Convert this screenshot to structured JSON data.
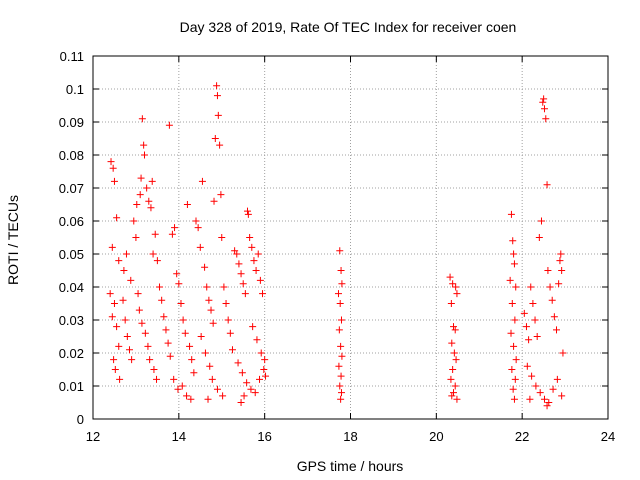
{
  "chart_data": {
    "type": "scatter",
    "title": "Day 328 of 2019, Rate Of TEC Index for receiver coen",
    "xlabel": "GPS time / hours",
    "ylabel": "ROTI / TECUs",
    "xlim": [
      12,
      24
    ],
    "ylim": [
      0,
      0.11
    ],
    "xticks": [
      12,
      14,
      16,
      18,
      20,
      22,
      24
    ],
    "yticks": [
      0,
      0.01,
      0.02,
      0.03,
      0.04,
      0.05,
      0.06,
      0.07,
      0.08,
      0.09,
      0.1,
      0.11
    ],
    "grid": true,
    "marker": "+",
    "marker_color": "#ff0000",
    "series": [
      {
        "name": "ROTI",
        "points": [
          [
            12.42,
            0.078
          ],
          [
            12.47,
            0.076
          ],
          [
            12.5,
            0.072
          ],
          [
            12.55,
            0.061
          ],
          [
            12.45,
            0.052
          ],
          [
            12.6,
            0.048
          ],
          [
            12.4,
            0.038
          ],
          [
            12.5,
            0.035
          ],
          [
            12.45,
            0.031
          ],
          [
            12.55,
            0.028
          ],
          [
            12.6,
            0.022
          ],
          [
            12.48,
            0.018
          ],
          [
            12.52,
            0.015
          ],
          [
            12.62,
            0.012
          ],
          [
            12.7,
            0.036
          ],
          [
            12.75,
            0.03
          ],
          [
            12.8,
            0.025
          ],
          [
            12.85,
            0.021
          ],
          [
            12.9,
            0.018
          ],
          [
            12.72,
            0.045
          ],
          [
            12.78,
            0.05
          ],
          [
            12.88,
            0.042
          ],
          [
            12.95,
            0.06
          ],
          [
            13.0,
            0.055
          ],
          [
            13.02,
            0.065
          ],
          [
            13.1,
            0.068
          ],
          [
            13.12,
            0.073
          ],
          [
            13.15,
            0.091
          ],
          [
            13.18,
            0.083
          ],
          [
            13.2,
            0.08
          ],
          [
            13.25,
            0.07
          ],
          [
            13.3,
            0.066
          ],
          [
            13.35,
            0.064
          ],
          [
            13.38,
            0.072
          ],
          [
            13.4,
            0.05
          ],
          [
            13.45,
            0.056
          ],
          [
            13.5,
            0.048
          ],
          [
            13.05,
            0.038
          ],
          [
            13.08,
            0.033
          ],
          [
            13.14,
            0.029
          ],
          [
            13.22,
            0.026
          ],
          [
            13.28,
            0.022
          ],
          [
            13.32,
            0.018
          ],
          [
            13.42,
            0.015
          ],
          [
            13.48,
            0.012
          ],
          [
            13.55,
            0.04
          ],
          [
            13.6,
            0.036
          ],
          [
            13.65,
            0.031
          ],
          [
            13.7,
            0.027
          ],
          [
            13.75,
            0.023
          ],
          [
            13.78,
            0.089
          ],
          [
            13.8,
            0.019
          ],
          [
            13.85,
            0.056
          ],
          [
            13.9,
            0.058
          ],
          [
            13.95,
            0.044
          ],
          [
            14.0,
            0.041
          ],
          [
            14.05,
            0.035
          ],
          [
            14.1,
            0.03
          ],
          [
            14.15,
            0.026
          ],
          [
            14.2,
            0.065
          ],
          [
            14.25,
            0.022
          ],
          [
            14.3,
            0.018
          ],
          [
            14.35,
            0.014
          ],
          [
            13.88,
            0.012
          ],
          [
            13.98,
            0.009
          ],
          [
            14.08,
            0.01
          ],
          [
            14.18,
            0.007
          ],
          [
            14.28,
            0.006
          ],
          [
            14.4,
            0.06
          ],
          [
            14.45,
            0.058
          ],
          [
            14.5,
            0.052
          ],
          [
            14.55,
            0.072
          ],
          [
            14.6,
            0.046
          ],
          [
            14.65,
            0.04
          ],
          [
            14.7,
            0.036
          ],
          [
            14.75,
            0.033
          ],
          [
            14.8,
            0.029
          ],
          [
            14.85,
            0.085
          ],
          [
            14.88,
            0.101
          ],
          [
            14.9,
            0.098
          ],
          [
            14.92,
            0.092
          ],
          [
            14.95,
            0.083
          ],
          [
            14.98,
            0.068
          ],
          [
            14.82,
            0.066
          ],
          [
            15.0,
            0.055
          ],
          [
            14.52,
            0.025
          ],
          [
            14.62,
            0.02
          ],
          [
            14.72,
            0.016
          ],
          [
            14.78,
            0.012
          ],
          [
            14.9,
            0.009
          ],
          [
            15.02,
            0.007
          ],
          [
            14.68,
            0.006
          ],
          [
            15.05,
            0.04
          ],
          [
            15.1,
            0.035
          ],
          [
            15.15,
            0.03
          ],
          [
            15.2,
            0.026
          ],
          [
            15.25,
            0.021
          ],
          [
            15.3,
            0.051
          ],
          [
            15.35,
            0.05
          ],
          [
            15.4,
            0.047
          ],
          [
            15.45,
            0.044
          ],
          [
            15.5,
            0.041
          ],
          [
            15.55,
            0.038
          ],
          [
            15.6,
            0.063
          ],
          [
            15.62,
            0.062
          ],
          [
            15.65,
            0.055
          ],
          [
            15.7,
            0.052
          ],
          [
            15.75,
            0.048
          ],
          [
            15.8,
            0.045
          ],
          [
            15.85,
            0.05
          ],
          [
            15.9,
            0.042
          ],
          [
            15.95,
            0.038
          ],
          [
            15.38,
            0.017
          ],
          [
            15.48,
            0.014
          ],
          [
            15.58,
            0.011
          ],
          [
            15.68,
            0.009
          ],
          [
            15.78,
            0.008
          ],
          [
            15.88,
            0.012
          ],
          [
            15.98,
            0.015
          ],
          [
            15.45,
            0.005
          ],
          [
            15.52,
            0.007
          ],
          [
            15.72,
            0.028
          ],
          [
            15.82,
            0.024
          ],
          [
            15.92,
            0.02
          ],
          [
            16.0,
            0.018
          ],
          [
            16.02,
            0.013
          ],
          [
            17.75,
            0.051
          ],
          [
            17.78,
            0.045
          ],
          [
            17.8,
            0.041
          ],
          [
            17.72,
            0.038
          ],
          [
            17.76,
            0.035
          ],
          [
            17.79,
            0.03
          ],
          [
            17.74,
            0.027
          ],
          [
            17.77,
            0.022
          ],
          [
            17.8,
            0.019
          ],
          [
            17.73,
            0.016
          ],
          [
            17.78,
            0.013
          ],
          [
            17.75,
            0.01
          ],
          [
            17.79,
            0.008
          ],
          [
            17.77,
            0.006
          ],
          [
            20.32,
            0.043
          ],
          [
            20.38,
            0.041
          ],
          [
            20.45,
            0.04
          ],
          [
            20.48,
            0.038
          ],
          [
            20.35,
            0.035
          ],
          [
            20.4,
            0.028
          ],
          [
            20.44,
            0.027
          ],
          [
            20.36,
            0.023
          ],
          [
            20.42,
            0.02
          ],
          [
            20.46,
            0.018
          ],
          [
            20.38,
            0.015
          ],
          [
            20.34,
            0.012
          ],
          [
            20.44,
            0.01
          ],
          [
            20.4,
            0.008
          ],
          [
            20.48,
            0.006
          ],
          [
            20.36,
            0.007
          ],
          [
            21.75,
            0.062
          ],
          [
            21.78,
            0.054
          ],
          [
            21.8,
            0.05
          ],
          [
            21.82,
            0.047
          ],
          [
            21.72,
            0.042
          ],
          [
            21.85,
            0.04
          ],
          [
            21.77,
            0.035
          ],
          [
            21.83,
            0.03
          ],
          [
            21.74,
            0.026
          ],
          [
            21.8,
            0.022
          ],
          [
            21.86,
            0.018
          ],
          [
            21.76,
            0.015
          ],
          [
            21.84,
            0.012
          ],
          [
            21.79,
            0.009
          ],
          [
            21.82,
            0.006
          ],
          [
            22.05,
            0.032
          ],
          [
            22.1,
            0.028
          ],
          [
            22.15,
            0.024
          ],
          [
            22.2,
            0.04
          ],
          [
            22.25,
            0.035
          ],
          [
            22.3,
            0.03
          ],
          [
            22.35,
            0.025
          ],
          [
            22.4,
            0.055
          ],
          [
            22.45,
            0.06
          ],
          [
            22.48,
            0.096
          ],
          [
            22.5,
            0.097
          ],
          [
            22.52,
            0.094
          ],
          [
            22.55,
            0.091
          ],
          [
            22.58,
            0.071
          ],
          [
            22.6,
            0.045
          ],
          [
            22.65,
            0.04
          ],
          [
            22.7,
            0.036
          ],
          [
            22.75,
            0.031
          ],
          [
            22.8,
            0.027
          ],
          [
            22.85,
            0.041
          ],
          [
            22.88,
            0.048
          ],
          [
            22.9,
            0.05
          ],
          [
            22.92,
            0.045
          ],
          [
            22.95,
            0.02
          ],
          [
            22.12,
            0.016
          ],
          [
            22.22,
            0.013
          ],
          [
            22.32,
            0.01
          ],
          [
            22.42,
            0.008
          ],
          [
            22.52,
            0.006
          ],
          [
            22.62,
            0.005
          ],
          [
            22.72,
            0.009
          ],
          [
            22.82,
            0.012
          ],
          [
            22.92,
            0.007
          ],
          [
            22.18,
            0.006
          ],
          [
            22.58,
            0.004
          ]
        ]
      }
    ]
  }
}
